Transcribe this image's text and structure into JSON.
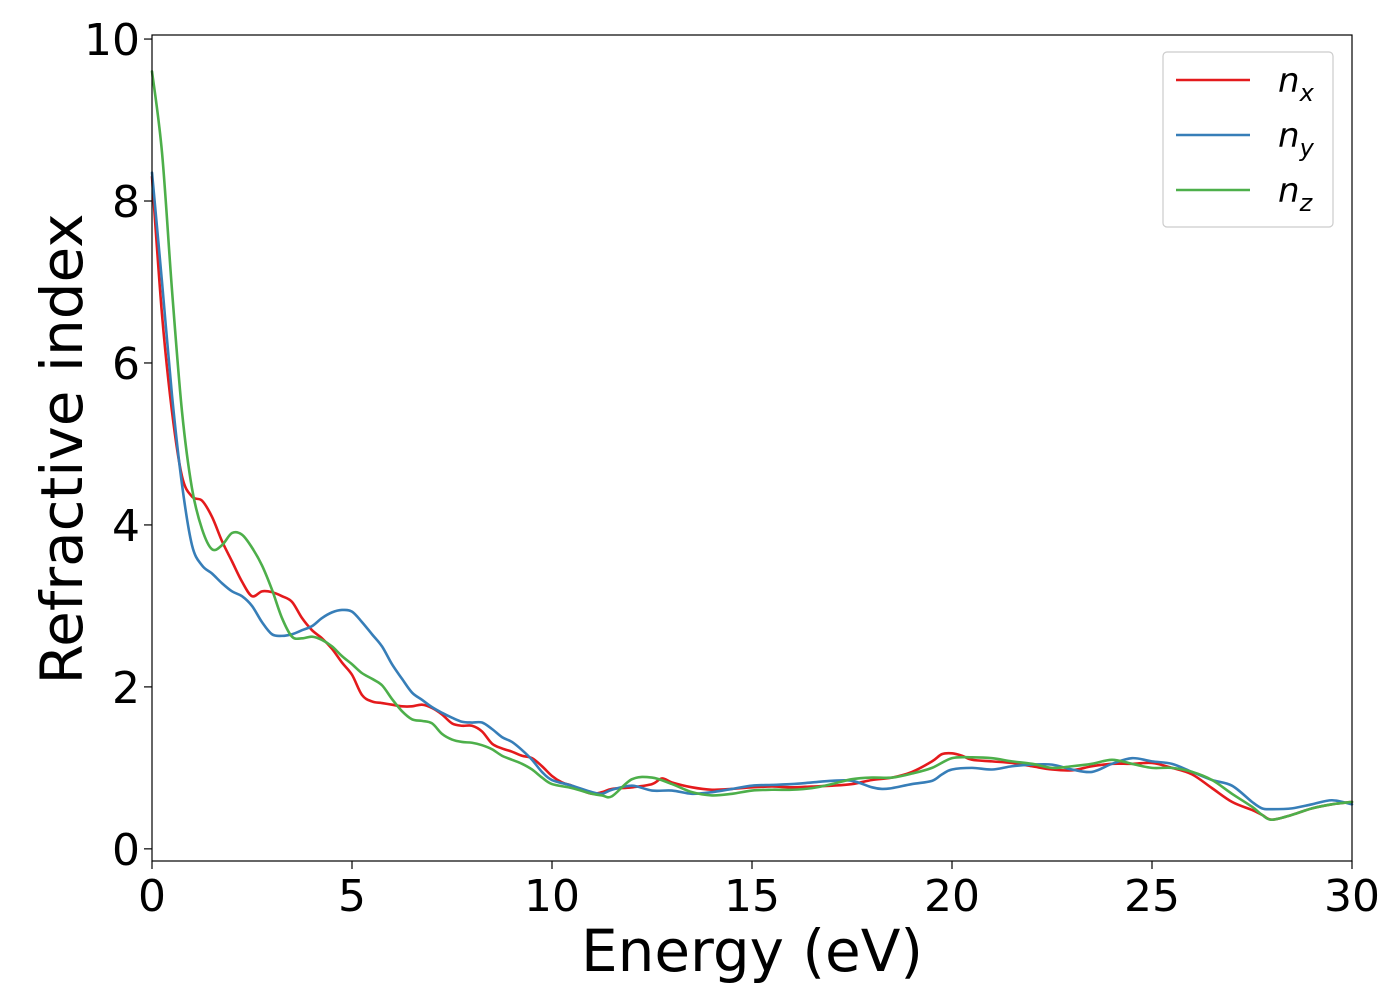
{
  "chart_data": {
    "type": "line",
    "xlabel": "Energy (eV)",
    "ylabel": "Refractive index",
    "xlim": [
      0,
      30
    ],
    "ylim": [
      -0.15,
      10.05
    ],
    "xticks": [
      "0",
      "5",
      "10",
      "15",
      "20",
      "25",
      "30"
    ],
    "yticks": [
      "0",
      "2",
      "4",
      "6",
      "8",
      "10"
    ],
    "grid": false,
    "legend_position": "top-right",
    "series": [
      {
        "name": "n_x",
        "label_base": "n",
        "label_sub": "x",
        "color": "#e41a1c",
        "x": [
          0,
          0.25,
          0.5,
          0.75,
          1.0,
          1.25,
          1.5,
          1.75,
          2.0,
          2.25,
          2.5,
          2.75,
          3.0,
          3.25,
          3.5,
          3.75,
          4.0,
          4.25,
          4.5,
          4.75,
          5.0,
          5.25,
          5.5,
          5.75,
          6.0,
          6.25,
          6.5,
          6.75,
          7.0,
          7.25,
          7.5,
          7.75,
          8.0,
          8.25,
          8.5,
          8.75,
          9.0,
          9.25,
          9.5,
          9.75,
          10.0,
          10.25,
          10.5,
          10.75,
          11.0,
          11.25,
          11.5,
          12.0,
          12.5,
          12.75,
          13.0,
          13.5,
          14.0,
          14.5,
          15.0,
          15.5,
          16.0,
          16.5,
          17.0,
          17.5,
          18.0,
          18.5,
          19.0,
          19.5,
          19.75,
          20.0,
          20.25,
          20.5,
          21.0,
          21.5,
          22.0,
          22.5,
          23.0,
          23.5,
          24.0,
          24.5,
          25.0,
          25.5,
          26.0,
          26.5,
          27.0,
          27.5,
          27.75,
          28.0,
          28.5,
          29.0,
          29.5,
          30.0
        ],
        "y": [
          8.3,
          6.6,
          5.4,
          4.6,
          4.35,
          4.3,
          4.1,
          3.8,
          3.55,
          3.3,
          3.12,
          3.18,
          3.17,
          3.12,
          3.05,
          2.85,
          2.7,
          2.6,
          2.47,
          2.3,
          2.15,
          1.9,
          1.82,
          1.8,
          1.78,
          1.76,
          1.76,
          1.78,
          1.74,
          1.66,
          1.55,
          1.52,
          1.52,
          1.45,
          1.3,
          1.24,
          1.2,
          1.15,
          1.12,
          1.02,
          0.9,
          0.82,
          0.78,
          0.72,
          0.68,
          0.7,
          0.74,
          0.76,
          0.8,
          0.87,
          0.82,
          0.76,
          0.73,
          0.74,
          0.76,
          0.77,
          0.76,
          0.77,
          0.78,
          0.8,
          0.85,
          0.88,
          0.95,
          1.08,
          1.17,
          1.18,
          1.15,
          1.1,
          1.08,
          1.06,
          1.02,
          0.98,
          0.97,
          1.02,
          1.05,
          1.05,
          1.06,
          1.0,
          0.92,
          0.75,
          0.58,
          0.48,
          0.42,
          0.36,
          0.42,
          0.5,
          0.55,
          0.58
        ]
      },
      {
        "name": "n_y",
        "label_base": "n",
        "label_sub": "y",
        "color": "#377eb8",
        "x": [
          0,
          0.25,
          0.5,
          0.75,
          1.0,
          1.25,
          1.5,
          1.75,
          2.0,
          2.25,
          2.5,
          2.75,
          3.0,
          3.25,
          3.5,
          3.75,
          4.0,
          4.25,
          4.5,
          4.75,
          5.0,
          5.25,
          5.5,
          5.75,
          6.0,
          6.25,
          6.5,
          6.75,
          7.0,
          7.25,
          7.5,
          7.75,
          8.0,
          8.25,
          8.5,
          8.75,
          9.0,
          9.25,
          9.5,
          9.75,
          10.0,
          10.5,
          11.0,
          11.25,
          11.5,
          12.0,
          12.5,
          13.0,
          13.5,
          14.0,
          14.5,
          15.0,
          15.5,
          16.0,
          16.5,
          17.0,
          17.5,
          18.0,
          18.25,
          18.5,
          19.0,
          19.5,
          19.75,
          20.0,
          20.5,
          21.0,
          21.5,
          22.0,
          22.5,
          23.0,
          23.5,
          24.0,
          24.5,
          25.0,
          25.5,
          26.0,
          26.5,
          27.0,
          27.5,
          27.75,
          28.0,
          28.5,
          29.0,
          29.5,
          30.0
        ],
        "y": [
          8.35,
          7.0,
          5.6,
          4.5,
          3.75,
          3.5,
          3.4,
          3.28,
          3.18,
          3.12,
          3.0,
          2.8,
          2.65,
          2.63,
          2.65,
          2.7,
          2.75,
          2.85,
          2.92,
          2.95,
          2.93,
          2.8,
          2.65,
          2.5,
          2.28,
          2.1,
          1.93,
          1.84,
          1.75,
          1.68,
          1.62,
          1.57,
          1.56,
          1.56,
          1.48,
          1.38,
          1.32,
          1.22,
          1.1,
          0.95,
          0.85,
          0.78,
          0.7,
          0.68,
          0.73,
          0.78,
          0.72,
          0.72,
          0.68,
          0.7,
          0.74,
          0.78,
          0.79,
          0.8,
          0.82,
          0.84,
          0.84,
          0.76,
          0.74,
          0.75,
          0.8,
          0.84,
          0.92,
          0.98,
          1.0,
          0.98,
          1.02,
          1.04,
          1.04,
          0.98,
          0.95,
          1.05,
          1.12,
          1.08,
          1.05,
          0.95,
          0.85,
          0.78,
          0.58,
          0.5,
          0.49,
          0.5,
          0.55,
          0.6,
          0.55
        ]
      },
      {
        "name": "n_z",
        "label_base": "n",
        "label_sub": "z",
        "color": "#4daf4a",
        "x": [
          0,
          0.25,
          0.5,
          0.75,
          1.0,
          1.25,
          1.5,
          1.75,
          2.0,
          2.25,
          2.5,
          2.75,
          3.0,
          3.25,
          3.5,
          3.75,
          4.0,
          4.25,
          4.5,
          4.75,
          5.0,
          5.25,
          5.5,
          5.75,
          6.0,
          6.25,
          6.5,
          6.75,
          7.0,
          7.25,
          7.5,
          7.75,
          8.0,
          8.25,
          8.5,
          8.75,
          9.0,
          9.25,
          9.5,
          9.75,
          10.0,
          10.5,
          11.0,
          11.25,
          11.5,
          12.0,
          12.5,
          13.0,
          13.5,
          14.0,
          14.5,
          15.0,
          15.5,
          16.0,
          16.5,
          17.0,
          17.5,
          18.0,
          18.5,
          19.0,
          19.5,
          20.0,
          20.5,
          21.0,
          21.5,
          22.0,
          22.5,
          23.0,
          23.5,
          24.0,
          24.5,
          25.0,
          25.5,
          26.0,
          26.5,
          27.0,
          27.5,
          27.75,
          28.0,
          28.5,
          29.0,
          29.5,
          30.0
        ],
        "y": [
          9.6,
          8.6,
          6.9,
          5.4,
          4.45,
          3.95,
          3.7,
          3.75,
          3.9,
          3.88,
          3.72,
          3.5,
          3.2,
          2.85,
          2.62,
          2.6,
          2.62,
          2.58,
          2.5,
          2.38,
          2.28,
          2.17,
          2.1,
          2.02,
          1.85,
          1.7,
          1.6,
          1.58,
          1.55,
          1.42,
          1.35,
          1.32,
          1.31,
          1.28,
          1.23,
          1.15,
          1.1,
          1.05,
          0.98,
          0.88,
          0.8,
          0.75,
          0.68,
          0.66,
          0.65,
          0.86,
          0.88,
          0.8,
          0.7,
          0.66,
          0.68,
          0.72,
          0.73,
          0.73,
          0.75,
          0.8,
          0.86,
          0.88,
          0.88,
          0.93,
          1.0,
          1.12,
          1.13,
          1.12,
          1.08,
          1.05,
          1.0,
          1.02,
          1.05,
          1.1,
          1.05,
          1.0,
          1.0,
          0.95,
          0.85,
          0.68,
          0.52,
          0.42,
          0.36,
          0.42,
          0.5,
          0.55,
          0.58
        ]
      }
    ]
  }
}
